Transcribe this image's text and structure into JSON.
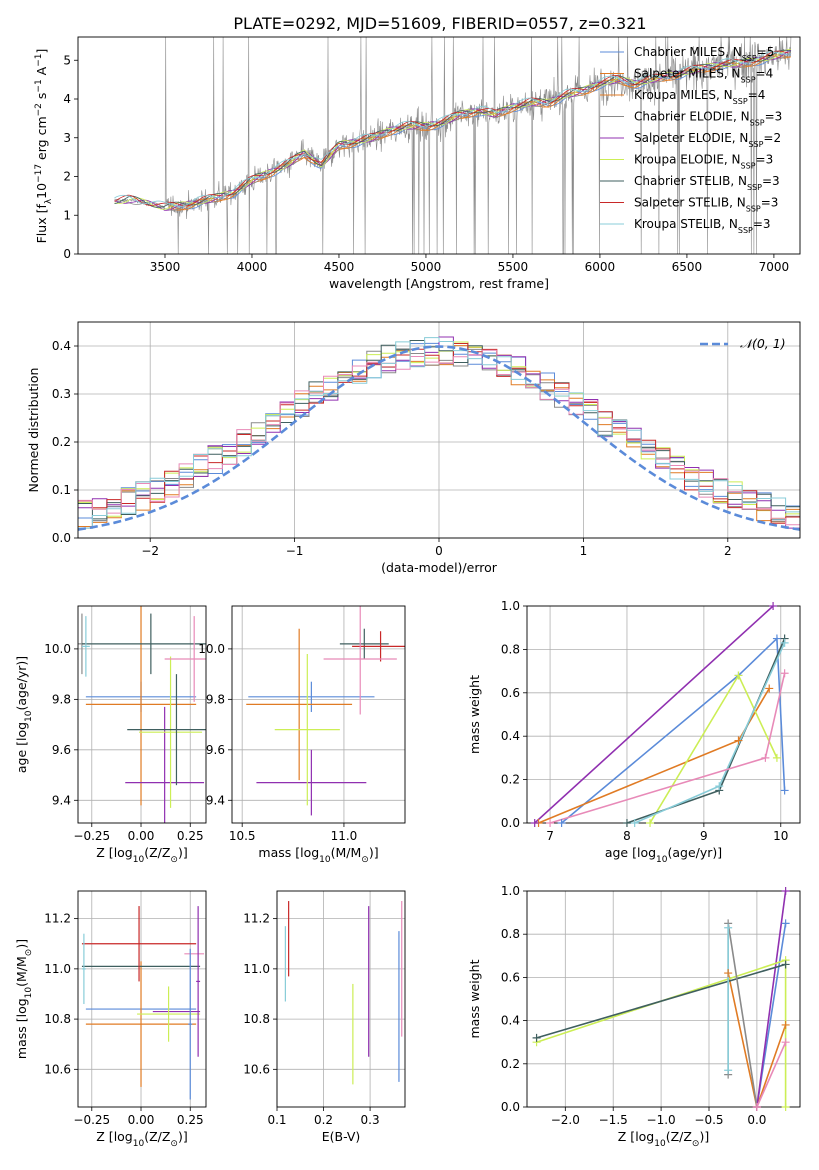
{
  "figure": {
    "title": "PLATE=0292, MJD=51609, FIBERID=0557, z=0.321",
    "colors": {
      "blue": "#5B8BD9",
      "orange": "#E07B24",
      "gray": "#8A8A8A",
      "purple": "#9030B0",
      "yellowgreen": "#CCEE55",
      "darkslate": "#3F5F5F",
      "red": "#C82828",
      "pink": "#E88AB8",
      "lightblue": "#88CCD8"
    }
  },
  "chart_data": [
    {
      "id": "spectrum",
      "type": "line",
      "xlabel": "wavelength [Angstrom, rest frame]",
      "ylabel": "Flux [f_λ 10^-17 erg cm^-2 s^-1 A^-1]",
      "xlim": [
        3000,
        7150
      ],
      "ylim": [
        0,
        5.6
      ],
      "xticks": [
        3500,
        4000,
        4500,
        5000,
        5500,
        6000,
        6500,
        7000
      ],
      "yticks": [
        0,
        1,
        2,
        3,
        4,
        5
      ],
      "grid": false,
      "legend_position": "top-right",
      "data_series": {
        "name": "observed",
        "x": [
          3210,
          3300,
          3400,
          3500,
          3600,
          3700,
          3800,
          3900,
          4000,
          4100,
          4200,
          4300,
          4400,
          4500,
          4600,
          4700,
          4800,
          4900,
          5000,
          5100,
          5200,
          5300,
          5400,
          5500,
          5600,
          5700,
          5800,
          5900,
          6000,
          6100,
          6200,
          6300,
          6400,
          6500,
          6600,
          6700,
          6800,
          6900,
          7000,
          7100
        ],
        "y": [
          1.35,
          1.4,
          1.3,
          1.2,
          1.25,
          1.35,
          1.45,
          1.6,
          1.9,
          2.1,
          2.3,
          2.6,
          2.3,
          2.8,
          2.9,
          3.0,
          3.2,
          3.3,
          3.3,
          3.4,
          3.6,
          3.7,
          3.6,
          3.8,
          3.9,
          3.9,
          4.1,
          4.2,
          4.4,
          4.5,
          4.4,
          4.5,
          4.6,
          4.7,
          4.8,
          4.9,
          4.9,
          5.0,
          5.1,
          5.2
        ]
      },
      "model_series_names": [
        "Chabrier MILES, N_SSP=5",
        "Salpeter MILES, N_SSP=4",
        "Kroupa MILES, N_SSP=4",
        "Chabrier ELODIE, N_SSP=3",
        "Salpeter ELODIE, N_SSP=2",
        "Kroupa ELODIE, N_SSP=3",
        "Chabrier STELIB, N_SSP=3",
        "Salpeter STELIB, N_SSP=3",
        "Kroupa STELIB, N_SSP=3"
      ],
      "legend": [
        {
          "name": "Chabrier MILES, N",
          "sub": "SSP",
          "tail": "=5",
          "color": "#5B8BD9"
        },
        {
          "name": "Salpeter MILES, N",
          "sub": "SSP",
          "tail": "=4",
          "color": "#E07B24"
        },
        {
          "name": "Kroupa MILES, N",
          "sub": "SSP",
          "tail": "=4",
          "color": "#E07B24"
        },
        {
          "name": "Chabrier ELODIE, N",
          "sub": "SSP",
          "tail": "=3",
          "color": "#8A8A8A"
        },
        {
          "name": "Salpeter ELODIE, N",
          "sub": "SSP",
          "tail": "=2",
          "color": "#9030B0"
        },
        {
          "name": "Kroupa ELODIE, N",
          "sub": "SSP",
          "tail": "=3",
          "color": "#CCEE55"
        },
        {
          "name": "Chabrier STELIB, N",
          "sub": "SSP",
          "tail": "=3",
          "color": "#3F5F5F"
        },
        {
          "name": "Salpeter STELIB, N",
          "sub": "SSP",
          "tail": "=3",
          "color": "#C82828"
        },
        {
          "name": "Kroupa STELIB, N",
          "sub": "SSP",
          "tail": "=3",
          "color": "#88CCD8"
        }
      ]
    },
    {
      "id": "residual_hist",
      "type": "line",
      "xlabel": "(data-model)/error",
      "ylabel": "Normed distribution",
      "xlim": [
        -2.5,
        2.5
      ],
      "ylim": [
        0,
        0.45
      ],
      "xticks": [
        -2,
        -1,
        0,
        1,
        2
      ],
      "yticks": [
        0.0,
        0.1,
        0.2,
        0.3,
        0.4
      ],
      "grid": true,
      "legend_position": "top-right",
      "legend_label": "𝒩(0, 1)",
      "gaussian": {
        "mean": 0,
        "sigma": 1,
        "color": "#5B8BD9"
      },
      "bin_width": 0.1
    },
    {
      "id": "age_vs_Z",
      "type": "scatter",
      "xlabel": "Z [log10(Z/Z☉)]",
      "ylabel": "age  [log10(age/yr)]",
      "xlim": [
        -0.32,
        0.33
      ],
      "ylim": [
        9.31,
        10.17
      ],
      "xticks": [
        -0.25,
        0.0,
        0.25
      ],
      "yticks": [
        9.4,
        9.6,
        9.8,
        10.0
      ],
      "grid": true,
      "points": [
        {
          "x": 0.0,
          "y": 9.81,
          "xerr": 0.28,
          "yerr": 0.06,
          "color": "#5B8BD9"
        },
        {
          "x": 0.0,
          "y": 9.78,
          "xerr": 0.28,
          "yerr": 0.4,
          "color": "#E07B24"
        },
        {
          "x": -0.3,
          "y": 10.02,
          "xerr": 0.02,
          "yerr": 0.12,
          "color": "#8A8A8A"
        },
        {
          "x": 0.12,
          "y": 9.47,
          "xerr": 0.2,
          "yerr": 0.3,
          "color": "#9030B0"
        },
        {
          "x": 0.15,
          "y": 9.67,
          "xerr": 0.16,
          "yerr": 0.3,
          "color": "#CCEE55"
        },
        {
          "x": 0.05,
          "y": 10.02,
          "xerr": 0.35,
          "yerr": 0.12,
          "color": "#3F5F5F"
        },
        {
          "x": 0.18,
          "y": 9.68,
          "xerr": 0.25,
          "yerr": 0.22,
          "color": "#3F5F5F"
        },
        {
          "x": 0.27,
          "y": 9.96,
          "xerr": 0.15,
          "yerr": 0.17,
          "color": "#E88AB8"
        },
        {
          "x": -0.28,
          "y": 10.01,
          "xerr": 0.02,
          "yerr": 0.12,
          "color": "#88CCD8"
        }
      ]
    },
    {
      "id": "age_vs_mass",
      "type": "scatter",
      "xlabel": "mass [log10(M/M☉)]",
      "ylabel": "",
      "xlim": [
        10.45,
        11.3
      ],
      "ylim": [
        9.31,
        10.17
      ],
      "xticks": [
        10.5,
        11.0
      ],
      "yticks": [
        9.4,
        9.6,
        9.8,
        10.0
      ],
      "grid": true,
      "points": [
        {
          "x": 10.84,
          "y": 9.81,
          "xerr": 0.31,
          "yerr": 0.06,
          "color": "#5B8BD9"
        },
        {
          "x": 10.78,
          "y": 9.78,
          "xerr": 0.26,
          "yerr": 0.3,
          "color": "#E07B24"
        },
        {
          "x": 10.84,
          "y": 9.47,
          "xerr": 0.27,
          "yerr": 0.13,
          "color": "#9030B0"
        },
        {
          "x": 10.82,
          "y": 9.68,
          "xerr": 0.16,
          "yerr": 0.3,
          "color": "#CCEE55"
        },
        {
          "x": 11.1,
          "y": 10.02,
          "xerr": 0.12,
          "yerr": 0.06,
          "color": "#3F5F5F"
        },
        {
          "x": 11.18,
          "y": 10.01,
          "xerr": 0.14,
          "yerr": 0.06,
          "color": "#C82828"
        },
        {
          "x": 11.08,
          "y": 9.96,
          "xerr": 0.18,
          "yerr": 0.22,
          "color": "#E88AB8"
        }
      ]
    },
    {
      "id": "weight_vs_age",
      "type": "line",
      "xlabel": "age  [log10(age/yr)]",
      "ylabel": "mass weight",
      "xlim": [
        6.7,
        10.25
      ],
      "ylim": [
        0.0,
        1.0
      ],
      "xticks": [
        7,
        8,
        9,
        10
      ],
      "yticks": [
        0.0,
        0.2,
        0.4,
        0.6,
        0.8,
        1.0
      ],
      "grid": true,
      "series": [
        {
          "name": "",
          "color": "#5B8BD9",
          "x": [
            7.15,
            9.45,
            9.95,
            10.05
          ],
          "y": [
            0.0,
            0.68,
            0.85,
            0.15
          ]
        },
        {
          "name": "",
          "color": "#E07B24",
          "x": [
            6.85,
            9.45,
            9.85
          ],
          "y": [
            0.0,
            0.38,
            0.62
          ]
        },
        {
          "name": "",
          "color": "#9030B0",
          "x": [
            6.8,
            9.9
          ],
          "y": [
            0.0,
            1.0
          ]
        },
        {
          "name": "",
          "color": "#CCEE55",
          "x": [
            8.3,
            9.45,
            9.95
          ],
          "y": [
            0.0,
            0.68,
            0.3
          ]
        },
        {
          "name": "",
          "color": "#3F5F5F",
          "x": [
            8.0,
            9.2,
            10.05
          ],
          "y": [
            0.0,
            0.15,
            0.85
          ]
        },
        {
          "name": "",
          "color": "#88CCD8",
          "x": [
            8.1,
            9.2,
            10.05
          ],
          "y": [
            0.0,
            0.17,
            0.83
          ]
        },
        {
          "name": "",
          "color": "#E88AB8",
          "x": [
            7.0,
            9.8,
            10.05
          ],
          "y": [
            0.0,
            0.3,
            0.69
          ]
        }
      ]
    },
    {
      "id": "mass_vs_Z",
      "type": "scatter",
      "xlabel": "Z [log10(Z/Z☉)]",
      "ylabel": "mass [log10(M/M☉)]",
      "xlim": [
        -0.32,
        0.33
      ],
      "ylim": [
        10.45,
        11.31
      ],
      "xticks": [
        -0.25,
        0.0,
        0.25
      ],
      "yticks": [
        10.6,
        10.8,
        11.0,
        11.2
      ],
      "grid": true,
      "points": [
        {
          "x": 0.0,
          "y": 10.84,
          "xerr": 0.28,
          "yerr": 0.0,
          "color": "#5B8BD9"
        },
        {
          "x": 0.0,
          "y": 10.78,
          "xerr": 0.28,
          "yerr": 0.25,
          "color": "#E07B24"
        },
        {
          "x": 0.18,
          "y": 10.83,
          "xerr": 0.12,
          "yerr": 0.0,
          "color": "#9030B0"
        },
        {
          "x": 0.14,
          "y": 10.82,
          "xerr": 0.16,
          "yerr": 0.11,
          "color": "#CCEE55"
        },
        {
          "x": 0.0,
          "y": 11.01,
          "xerr": 0.3,
          "yerr": 0.0,
          "color": "#3F5F5F"
        },
        {
          "x": -0.01,
          "y": 11.1,
          "xerr": 0.29,
          "yerr": 0.15,
          "color": "#C82828"
        },
        {
          "x": 0.27,
          "y": 11.06,
          "xerr": 0.05,
          "yerr": 0.0,
          "color": "#E88AB8"
        },
        {
          "x": -0.29,
          "y": 11.0,
          "xerr": 0.01,
          "yerr": 0.14,
          "color": "#88CCD8"
        },
        {
          "x": 0.29,
          "y": 10.95,
          "xerr": 0.01,
          "yerr": 0.3,
          "color": "#9030B0"
        },
        {
          "x": 0.25,
          "y": 10.78,
          "xerr": 0.01,
          "yerr": 0.3,
          "color": "#5B8BD9"
        }
      ]
    },
    {
      "id": "mass_vs_ebv",
      "type": "scatter",
      "xlabel": "E(B-V)",
      "ylabel": "",
      "xlim": [
        0.1,
        0.375
      ],
      "ylim": [
        10.45,
        11.31
      ],
      "xticks": [
        0.1,
        0.2,
        0.3
      ],
      "yticks": [
        10.6,
        10.8,
        11.0,
        11.2
      ],
      "grid": true,
      "points": [
        {
          "x": 0.118,
          "y": 11.02,
          "xerr": 0,
          "yerr": 0.15,
          "color": "#88CCD8"
        },
        {
          "x": 0.125,
          "y": 11.12,
          "xerr": 0,
          "yerr": 0.15,
          "color": "#C82828"
        },
        {
          "x": 0.263,
          "y": 10.74,
          "xerr": 0,
          "yerr": 0.2,
          "color": "#CCEE55"
        },
        {
          "x": 0.297,
          "y": 10.95,
          "xerr": 0,
          "yerr": 0.3,
          "color": "#9030B0"
        },
        {
          "x": 0.362,
          "y": 10.85,
          "xerr": 0,
          "yerr": 0.3,
          "color": "#5B8BD9"
        },
        {
          "x": 0.368,
          "y": 11.0,
          "xerr": 0,
          "yerr": 0.27,
          "color": "#E88AB8"
        }
      ]
    },
    {
      "id": "weight_vs_Z",
      "type": "line",
      "xlabel": "Z [log10(Z/Z☉)]",
      "ylabel": "mass weight",
      "xlim": [
        -2.4,
        0.45
      ],
      "ylim": [
        0.0,
        1.0
      ],
      "xticks": [
        -2.0,
        -1.5,
        -1.0,
        -0.5,
        0.0
      ],
      "yticks": [
        0.0,
        0.2,
        0.4,
        0.6,
        0.8,
        1.0
      ],
      "grid": true,
      "series": [
        {
          "name": "",
          "color": "#5B8BD9",
          "x": [
            0.0,
            0.3
          ],
          "y": [
            0.0,
            0.85
          ]
        },
        {
          "name": "",
          "color": "#E07B24",
          "x": [
            -0.3,
            0.0,
            0.3
          ],
          "y": [
            0.62,
            0.0,
            0.38
          ]
        },
        {
          "name": "",
          "color": "#9030B0",
          "x": [
            0.0,
            0.3
          ],
          "y": [
            0.0,
            1.0
          ]
        },
        {
          "name": "",
          "color": "#CCEE55",
          "x": [
            -2.3,
            0.3,
            0.3
          ],
          "y": [
            0.3,
            0.68,
            0.0
          ]
        },
        {
          "name": "",
          "color": "#3F5F5F",
          "x": [
            -2.3,
            0.3
          ],
          "y": [
            0.32,
            0.66
          ]
        },
        {
          "name": "",
          "color": "#8A8A8A",
          "x": [
            -0.3,
            -0.3,
            0.0
          ],
          "y": [
            0.15,
            0.85,
            0.0
          ]
        },
        {
          "name": "",
          "color": "#88CCD8",
          "x": [
            -0.3,
            -0.3
          ],
          "y": [
            0.17,
            0.83
          ]
        },
        {
          "name": "",
          "color": "#E88AB8",
          "x": [
            0.0,
            0.3
          ],
          "y": [
            0.0,
            0.3
          ]
        }
      ]
    }
  ]
}
